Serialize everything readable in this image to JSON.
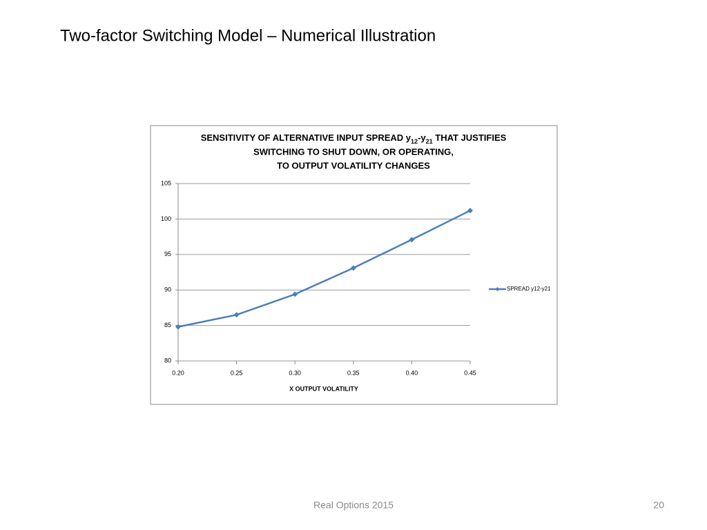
{
  "slide_title": "Two-factor Switching Model – Numerical Illustration",
  "footer": "Real Options 2015",
  "page_number": "20",
  "chart_data": {
    "type": "line",
    "title": [
      "SENSITIVITY OF ALTERNATIVE INPUT SPREAD y",
      "12",
      "-y",
      "21",
      " THAT JUSTIFIES",
      "SWITCHING TO SHUT DOWN, OR OPERATING,",
      "TO OUTPUT VOLATILITY CHANGES"
    ],
    "x_label": "X OUTPUT VOLATILITY",
    "x": [
      0.2,
      0.25,
      0.3,
      0.35,
      0.4,
      0.45
    ],
    "series": [
      {
        "name": "SPREAD y12-y21",
        "color": "#4a7ebb",
        "values": [
          84.8,
          86.5,
          89.4,
          93.1,
          97.1,
          101.2
        ]
      }
    ],
    "xlim": [
      0.2,
      0.45
    ],
    "xticks": [
      {
        "value": 0.2,
        "label": "0.20"
      },
      {
        "value": 0.25,
        "label": "0.25"
      },
      {
        "value": 0.3,
        "label": "0.30"
      },
      {
        "value": 0.35,
        "label": "0.35"
      },
      {
        "value": 0.4,
        "label": "0.40"
      },
      {
        "value": 0.45,
        "label": "0.45"
      }
    ],
    "ylim": [
      80,
      105
    ],
    "yticks": [
      80,
      85,
      90,
      95,
      100,
      105
    ],
    "grid": true,
    "legend": "right"
  }
}
